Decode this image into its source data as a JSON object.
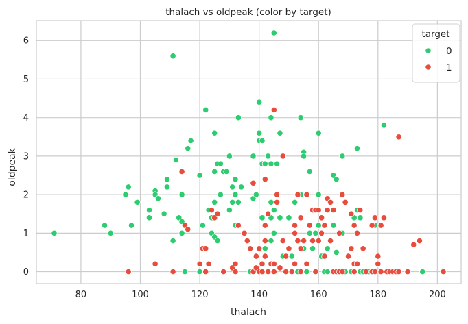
{
  "chart_data": {
    "type": "scatter",
    "title": "thalach vs oldpeak (color by target)",
    "xlabel": "thalach",
    "ylabel": "oldpeak",
    "xlim": [
      65,
      208
    ],
    "ylim": [
      -0.31,
      6.52
    ],
    "xticks": [
      80,
      100,
      120,
      140,
      160,
      180,
      200
    ],
    "yticks": [
      0,
      1,
      2,
      3,
      4,
      5,
      6
    ],
    "grid": true,
    "legend": {
      "title": "target",
      "position": "top-right"
    },
    "series": [
      {
        "name": "0",
        "color": "#2ecc71",
        "points": [
          [
            71,
            1.0
          ],
          [
            88,
            1.2
          ],
          [
            90,
            1.0
          ],
          [
            95,
            2.0
          ],
          [
            96,
            2.2
          ],
          [
            97,
            1.2
          ],
          [
            99,
            1.8
          ],
          [
            103,
            1.6
          ],
          [
            103,
            1.4
          ],
          [
            105,
            2.1
          ],
          [
            105,
            2.0
          ],
          [
            106,
            1.9
          ],
          [
            108,
            1.5
          ],
          [
            109,
            2.2
          ],
          [
            109,
            2.4
          ],
          [
            111,
            5.6
          ],
          [
            112,
            2.9
          ],
          [
            111,
            0.8
          ],
          [
            113,
            1.4
          ],
          [
            114,
            1.3
          ],
          [
            114,
            2.0
          ],
          [
            114,
            1.0
          ],
          [
            115,
            0.0
          ],
          [
            116,
            3.2
          ],
          [
            117,
            3.4
          ],
          [
            120,
            0.0
          ],
          [
            120,
            2.5
          ],
          [
            121,
            1.2
          ],
          [
            122,
            4.2
          ],
          [
            123,
            1.6
          ],
          [
            124,
            1.4
          ],
          [
            124,
            1.0
          ],
          [
            125,
            3.6
          ],
          [
            125,
            2.6
          ],
          [
            125,
            1.8
          ],
          [
            125,
            0.9
          ],
          [
            126,
            2.8
          ],
          [
            126,
            0.8
          ],
          [
            127,
            2.8
          ],
          [
            127,
            2.0
          ],
          [
            128,
            2.6
          ],
          [
            129,
            2.6
          ],
          [
            130,
            3.0
          ],
          [
            130,
            1.6
          ],
          [
            131,
            2.2
          ],
          [
            131,
            1.8
          ],
          [
            132,
            2.4
          ],
          [
            132,
            2.0
          ],
          [
            132,
            1.2
          ],
          [
            133,
            4.0
          ],
          [
            133,
            1.8
          ],
          [
            134,
            2.2
          ],
          [
            137,
            0.0
          ],
          [
            138,
            3.0
          ],
          [
            138,
            1.9
          ],
          [
            139,
            2.0
          ],
          [
            140,
            4.4
          ],
          [
            140,
            3.6
          ],
          [
            140,
            3.4
          ],
          [
            141,
            3.4
          ],
          [
            141,
            2.8
          ],
          [
            141,
            1.4
          ],
          [
            142,
            2.8
          ],
          [
            142,
            0.6
          ],
          [
            143,
            3.0
          ],
          [
            144,
            4.0
          ],
          [
            144,
            2.8
          ],
          [
            144,
            1.8
          ],
          [
            144,
            1.4
          ],
          [
            144,
            0.8
          ],
          [
            145,
            6.2
          ],
          [
            145,
            1.6
          ],
          [
            145,
            1.0
          ],
          [
            146,
            2.8
          ],
          [
            147,
            3.6
          ],
          [
            147,
            1.4
          ],
          [
            148,
            0.4
          ],
          [
            150,
            1.4
          ],
          [
            151,
            0.4
          ],
          [
            152,
            1.8
          ],
          [
            153,
            0.0
          ],
          [
            154,
            4.0
          ],
          [
            154,
            2.0
          ],
          [
            155,
            3.1
          ],
          [
            155,
            3.0
          ],
          [
            155,
            0.6
          ],
          [
            156,
            0.0
          ],
          [
            157,
            2.6
          ],
          [
            157,
            1.0
          ],
          [
            158,
            0.6
          ],
          [
            159,
            1.0
          ],
          [
            159,
            0.0
          ],
          [
            160,
            3.6
          ],
          [
            160,
            2.0
          ],
          [
            160,
            1.2
          ],
          [
            161,
            0.4
          ],
          [
            162,
            1.2
          ],
          [
            162,
            0.0
          ],
          [
            163,
            0.0
          ],
          [
            163,
            0.6
          ],
          [
            165,
            2.5
          ],
          [
            165,
            1.2
          ],
          [
            166,
            0.5
          ],
          [
            166,
            2.4
          ],
          [
            168,
            3.0
          ],
          [
            168,
            1.0
          ],
          [
            169,
            0.0
          ],
          [
            171,
            0.0
          ],
          [
            172,
            1.4
          ],
          [
            173,
            3.2
          ],
          [
            173,
            1.6
          ],
          [
            174,
            1.4
          ],
          [
            174,
            0.0
          ],
          [
            175,
            0.0
          ],
          [
            177,
            0.0
          ],
          [
            178,
            0.0
          ],
          [
            179,
            1.2
          ],
          [
            181,
            0.0
          ],
          [
            182,
            3.8
          ],
          [
            185,
            0.0
          ],
          [
            195,
            0.0
          ]
        ]
      },
      {
        "name": "1",
        "color": "#e74c3c",
        "points": [
          [
            96,
            0.0
          ],
          [
            105,
            0.2
          ],
          [
            111,
            0.0
          ],
          [
            114,
            2.6
          ],
          [
            115,
            1.2
          ],
          [
            116,
            1.1
          ],
          [
            120,
            0.2
          ],
          [
            121,
            0.6
          ],
          [
            122,
            0.6
          ],
          [
            122,
            0.0
          ],
          [
            123,
            0.2
          ],
          [
            124,
            1.6
          ],
          [
            125,
            1.4
          ],
          [
            126,
            1.5
          ],
          [
            128,
            0.0
          ],
          [
            131,
            0.1
          ],
          [
            132,
            0.0
          ],
          [
            132,
            0.2
          ],
          [
            133,
            1.2
          ],
          [
            135,
            1.0
          ],
          [
            136,
            0.8
          ],
          [
            137,
            0.6
          ],
          [
            138,
            0.0
          ],
          [
            138,
            2.3
          ],
          [
            139,
            0.4
          ],
          [
            139,
            0.1
          ],
          [
            140,
            0.0
          ],
          [
            140,
            0.6
          ],
          [
            141,
            0.0
          ],
          [
            141,
            0.2
          ],
          [
            142,
            0.8
          ],
          [
            142,
            1.2
          ],
          [
            142,
            0.4
          ],
          [
            142,
            2.4
          ],
          [
            143,
            1.5
          ],
          [
            143,
            0.0
          ],
          [
            144,
            0.2
          ],
          [
            145,
            4.2
          ],
          [
            145,
            0.2
          ],
          [
            145,
            0.0
          ],
          [
            146,
            2.0
          ],
          [
            146,
            1.8
          ],
          [
            147,
            0.1
          ],
          [
            148,
            3.0
          ],
          [
            148,
            0.8
          ],
          [
            149,
            0.0
          ],
          [
            149,
            0.4
          ],
          [
            150,
            0.6
          ],
          [
            151,
            0.0
          ],
          [
            152,
            1.0
          ],
          [
            152,
            0.2
          ],
          [
            152,
            1.2
          ],
          [
            153,
            0.8
          ],
          [
            153,
            2.0
          ],
          [
            154,
            1.4
          ],
          [
            154,
            0.6
          ],
          [
            154,
            0.0
          ],
          [
            155,
            0.8
          ],
          [
            156,
            2.0
          ],
          [
            156,
            0.2
          ],
          [
            157,
            1.2
          ],
          [
            158,
            1.6
          ],
          [
            158,
            0.8
          ],
          [
            159,
            1.6
          ],
          [
            159,
            0.0
          ],
          [
            160,
            1.6
          ],
          [
            160,
            0.8
          ],
          [
            161,
            1.4
          ],
          [
            161,
            1.0
          ],
          [
            162,
            1.2
          ],
          [
            162,
            0.4
          ],
          [
            163,
            1.9
          ],
          [
            163,
            1.6
          ],
          [
            164,
            1.8
          ],
          [
            164,
            0.8
          ],
          [
            165,
            0.0
          ],
          [
            165,
            1.6
          ],
          [
            166,
            0.0
          ],
          [
            167,
            1.0
          ],
          [
            167,
            0.0
          ],
          [
            168,
            2.0
          ],
          [
            168,
            0.0
          ],
          [
            169,
            1.8
          ],
          [
            170,
            0.4
          ],
          [
            171,
            1.5
          ],
          [
            171,
            0.6
          ],
          [
            172,
            0.2
          ],
          [
            172,
            1.2
          ],
          [
            172,
            0.0
          ],
          [
            173,
            1.0
          ],
          [
            173,
            0.2
          ],
          [
            174,
            1.6
          ],
          [
            175,
            0.6
          ],
          [
            176,
            0.0
          ],
          [
            178,
            1.2
          ],
          [
            178,
            0.0
          ],
          [
            179,
            1.4
          ],
          [
            179,
            0.0
          ],
          [
            180,
            0.4
          ],
          [
            180,
            0.2
          ],
          [
            181,
            1.2
          ],
          [
            181,
            0.0
          ],
          [
            182,
            1.4
          ],
          [
            183,
            0.0
          ],
          [
            184,
            0.0
          ],
          [
            185,
            0.0
          ],
          [
            186,
            0.0
          ],
          [
            187,
            3.5
          ],
          [
            187,
            0.0
          ],
          [
            190,
            0.0
          ],
          [
            192,
            0.7
          ],
          [
            194,
            0.8
          ],
          [
            202,
            0.0
          ]
        ]
      }
    ]
  }
}
